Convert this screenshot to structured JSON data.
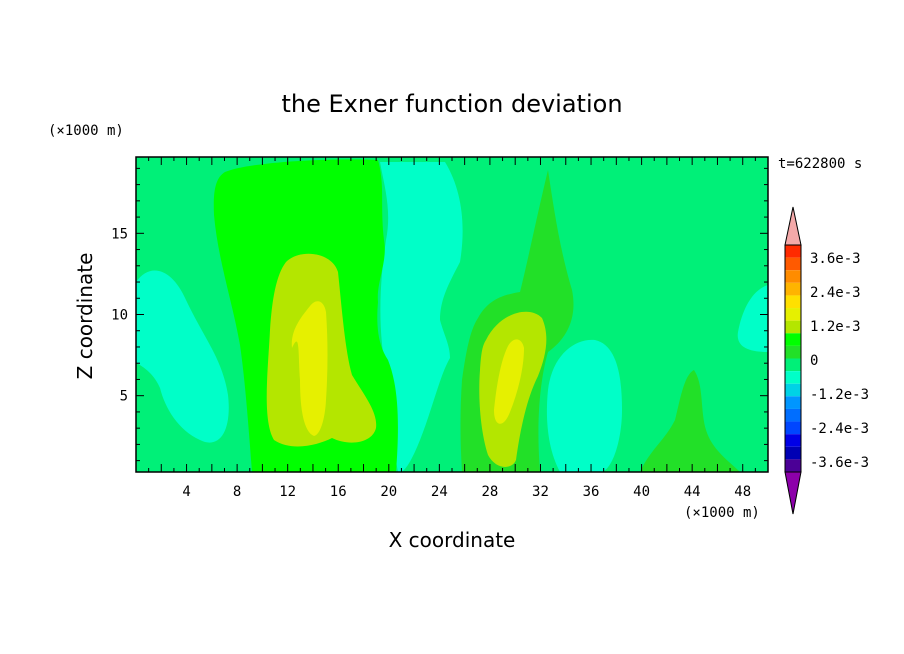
{
  "chart_data": {
    "type": "heatmap",
    "title": "the Exner function deviation",
    "xlabel": "X coordinate",
    "ylabel": "Z coordinate",
    "x_unit": "(×1000 m)",
    "y_unit": "(×1000 m)",
    "time_label": "t=622800 s",
    "xlim": [
      0,
      50
    ],
    "ylim": [
      0.3,
      19.7
    ],
    "x_ticks": [
      4,
      8,
      12,
      16,
      20,
      24,
      28,
      32,
      36,
      40,
      44,
      48
    ],
    "y_ticks": [
      5,
      10,
      15
    ],
    "colorbar": {
      "tick_labels": [
        "3.6e-3",
        "2.4e-3",
        "1.2e-3",
        "0",
        "-1.2e-3",
        "-2.4e-3",
        "-3.6e-3"
      ],
      "levels_top_to_bottom": [
        "#f4a9a9",
        "#ff2a00",
        "#ff5a00",
        "#ff8c00",
        "#ffb400",
        "#ffe000",
        "#e6f000",
        "#b4e600",
        "#00ff00",
        "#22e028",
        "#00f078",
        "#00ffc8",
        "#00d2e6",
        "#0096ff",
        "#006eff",
        "#0046ff",
        "#0000e6",
        "#0000b4",
        "#4b0096",
        "#8c00aa"
      ],
      "extend": "both"
    },
    "field_colors": {
      "base": "#00f078",
      "neg_1": "#00ffc8",
      "pos_1": "#22e028",
      "pos_2": "#00ff00",
      "pos_3": "#b4e600",
      "pos_4": "#e6f000"
    }
  }
}
